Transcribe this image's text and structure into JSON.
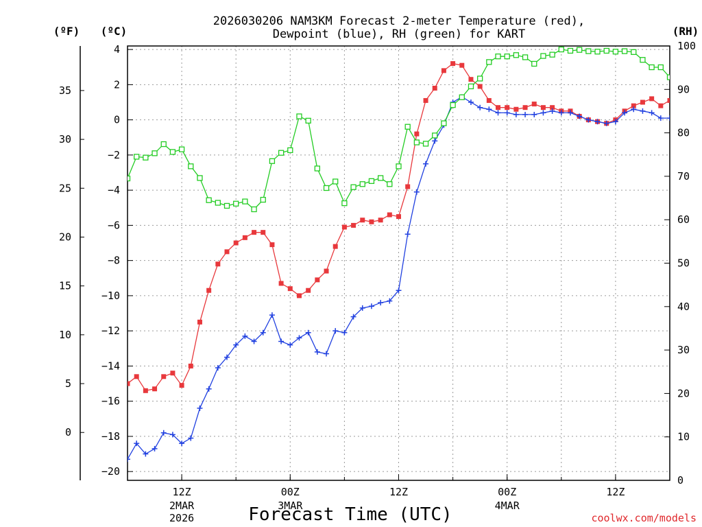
{
  "chart_data": {
    "type": "line",
    "title": [
      "2026030206 NAM3KM Forecast 2-meter Temperature (red),",
      "Dewpoint (blue), RH (green) for KART"
    ],
    "xlabel": "Forecast Time (UTC)",
    "unit_labels": {
      "fahrenheit": "(ºF)",
      "celsius": "(ºC)",
      "rh": "(RH)"
    },
    "credit": "coolwx.com/models",
    "x_unit": "forecast hour from 2026-03-02 06Z",
    "xlim": [
      6,
      66
    ],
    "x_ticks": [
      {
        "x": 12,
        "label": "12Z",
        "sub": [
          "2MAR",
          "2026"
        ]
      },
      {
        "x": 24,
        "label": "00Z",
        "sub": [
          "3MAR"
        ]
      },
      {
        "x": 36,
        "label": "12Z",
        "sub": []
      },
      {
        "x": 48,
        "label": "00Z",
        "sub": [
          "4MAR"
        ]
      },
      {
        "x": 60,
        "label": "12Z",
        "sub": []
      }
    ],
    "y_celsius": {
      "lim": [
        -20.5,
        4.2
      ],
      "ticks": [
        -20,
        -18,
        -16,
        -14,
        -12,
        -10,
        -8,
        -6,
        -4,
        -2,
        0,
        2,
        4
      ]
    },
    "y_fahrenheit": {
      "ticks": [
        0,
        5,
        10,
        15,
        20,
        25,
        30,
        35
      ]
    },
    "y_rh": {
      "lim": [
        0,
        100
      ],
      "ticks": [
        0,
        10,
        20,
        30,
        40,
        50,
        60,
        70,
        80,
        90,
        100
      ]
    },
    "series": [
      {
        "name": "Temperature",
        "axis": "celsius",
        "color": "#e8383c",
        "marker": "filled-square",
        "x": [
          6,
          7,
          8,
          9,
          10,
          11,
          12,
          13,
          14,
          15,
          16,
          17,
          18,
          19,
          20,
          21,
          22,
          23,
          24,
          25,
          26,
          27,
          28,
          29,
          30,
          31,
          32,
          33,
          34,
          35,
          36,
          37,
          38,
          39,
          40,
          41,
          42,
          43,
          44,
          45,
          46,
          47,
          48,
          49,
          50,
          51,
          52,
          53,
          54,
          55,
          56,
          57,
          58,
          59,
          60,
          61,
          62,
          63,
          64,
          65,
          66
        ],
        "values": [
          -15,
          -14.6,
          -15.4,
          -15.3,
          -14.6,
          -14.4,
          -15.1,
          -14,
          -11.5,
          -9.7,
          -8.2,
          -7.5,
          -7,
          -6.7,
          -6.4,
          -6.4,
          -7.1,
          -9.3,
          -9.6,
          -10,
          -9.7,
          -9.1,
          -8.6,
          -7.2,
          -6.1,
          -6,
          -5.7,
          -5.8,
          -5.7,
          -5.4,
          -5.5,
          -3.8,
          -0.8,
          1.1,
          1.8,
          2.8,
          3.2,
          3.1,
          2.3,
          1.9,
          1.1,
          0.7,
          0.7,
          0.6,
          0.7,
          0.9,
          0.7,
          0.7,
          0.5,
          0.5,
          0.2,
          0,
          -0.1,
          -0.2,
          0,
          0.5,
          0.8,
          1,
          1.2,
          0.8,
          1.1
        ]
      },
      {
        "name": "Dewpoint",
        "axis": "celsius",
        "color": "#2040e0",
        "marker": "plus",
        "x": [
          6,
          7,
          8,
          9,
          10,
          11,
          12,
          13,
          14,
          15,
          16,
          17,
          18,
          19,
          20,
          21,
          22,
          23,
          24,
          25,
          26,
          27,
          28,
          29,
          30,
          31,
          32,
          33,
          34,
          35,
          36,
          37,
          38,
          39,
          40,
          41,
          42,
          43,
          44,
          45,
          46,
          47,
          48,
          49,
          50,
          51,
          52,
          53,
          54,
          55,
          56,
          57,
          58,
          59,
          60,
          61,
          62,
          63,
          64,
          65,
          66
        ],
        "values": [
          -19.3,
          -18.4,
          -19,
          -18.7,
          -17.8,
          -17.9,
          -18.4,
          -18.1,
          -16.4,
          -15.3,
          -14.1,
          -13.5,
          -12.8,
          -12.3,
          -12.6,
          -12.1,
          -11.1,
          -12.6,
          -12.8,
          -12.4,
          -12.1,
          -13.2,
          -13.3,
          -12,
          -12.1,
          -11.2,
          -10.7,
          -10.6,
          -10.4,
          -10.3,
          -9.7,
          -6.5,
          -4.1,
          -2.5,
          -1.2,
          -0.3,
          1,
          1.3,
          1,
          0.7,
          0.6,
          0.4,
          0.4,
          0.3,
          0.3,
          0.3,
          0.4,
          0.5,
          0.4,
          0.4,
          0.2,
          0,
          -0.1,
          -0.2,
          -0.1,
          0.4,
          0.6,
          0.5,
          0.4,
          0.1,
          0.1
        ]
      },
      {
        "name": "RH",
        "axis": "rh",
        "color": "#22cc22",
        "marker": "open-square",
        "x": [
          6,
          7,
          8,
          9,
          10,
          11,
          12,
          13,
          14,
          15,
          16,
          17,
          18,
          19,
          20,
          21,
          22,
          23,
          24,
          25,
          26,
          27,
          28,
          29,
          30,
          31,
          32,
          33,
          34,
          35,
          36,
          37,
          38,
          39,
          40,
          41,
          42,
          43,
          44,
          45,
          46,
          47,
          48,
          49,
          50,
          51,
          52,
          53,
          54,
          55,
          56,
          57,
          58,
          59,
          60,
          61,
          62,
          63,
          64,
          65,
          66
        ],
        "values": [
          69.5,
          74.5,
          74.3,
          75.3,
          77.4,
          75.6,
          76.2,
          72.3,
          69.6,
          64.5,
          63.9,
          63.2,
          63.7,
          64.2,
          62.4,
          64.6,
          73.5,
          75.4,
          76,
          83.8,
          82.8,
          71.8,
          67.3,
          68.8,
          63.8,
          67.5,
          68.2,
          68.9,
          69.6,
          68.2,
          72.3,
          81.4,
          77.8,
          77.5,
          79.4,
          82.2,
          86.4,
          88.2,
          90.7,
          92.5,
          96.3,
          97.6,
          97.6,
          97.9,
          97.4,
          95.9,
          97.7,
          98,
          99.2,
          98.9,
          99.1,
          98.8,
          98.7,
          98.9,
          98.7,
          98.8,
          98.6,
          96.8,
          95.1,
          95.1,
          92.8
        ]
      }
    ]
  }
}
